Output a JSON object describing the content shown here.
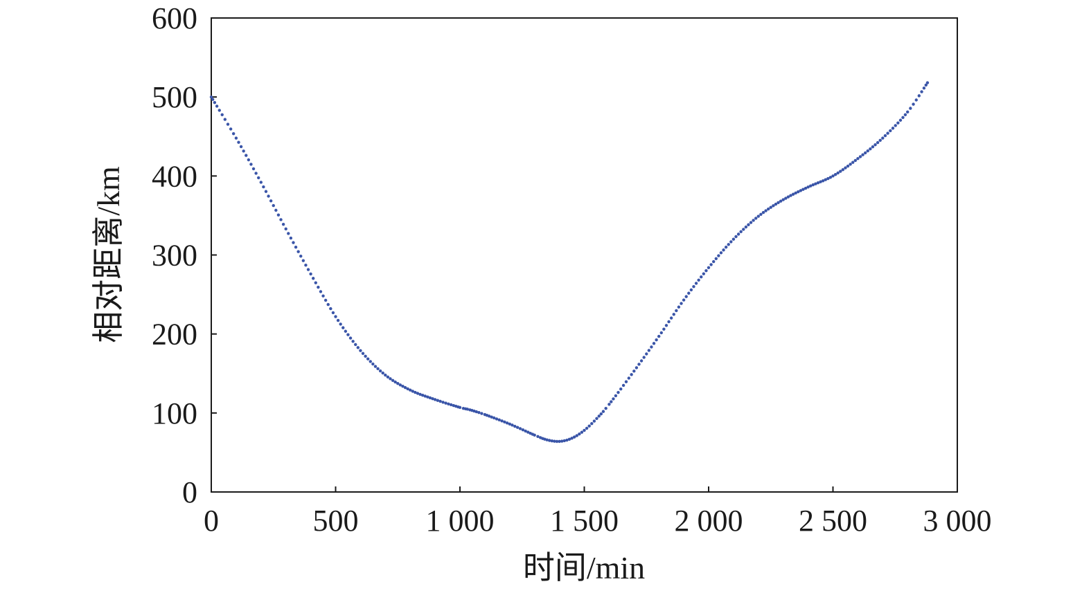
{
  "chart_data": {
    "type": "scatter",
    "xlabel": "时间/min",
    "ylabel": "相对距离/km",
    "xlim": [
      0,
      3000
    ],
    "ylim": [
      0,
      600
    ],
    "x_ticks": [
      0,
      500,
      1000,
      1500,
      2000,
      2500,
      3000
    ],
    "x_tick_labels": [
      "0",
      "500",
      "1 000",
      "1 500",
      "2 000",
      "2 500",
      "3 000"
    ],
    "y_ticks": [
      0,
      100,
      200,
      300,
      400,
      500,
      600
    ],
    "y_tick_labels": [
      "0",
      "100",
      "200",
      "300",
      "400",
      "500",
      "600"
    ],
    "grid": false,
    "legend": "none",
    "series": [
      {
        "color": "#3a55a8",
        "marker": "dot",
        "x": [
          0,
          100,
          200,
          300,
          400,
          500,
          600,
          700,
          800,
          900,
          1000,
          1040,
          1100,
          1200,
          1300,
          1350,
          1400,
          1450,
          1500,
          1550,
          1600,
          1700,
          1800,
          1900,
          2000,
          2100,
          2200,
          2300,
          2400,
          2500,
          2600,
          2700,
          2800,
          2880
        ],
        "y": [
          500,
          448,
          392,
          333,
          276,
          222,
          179,
          148,
          129,
          117,
          107,
          104,
          98,
          86,
          72,
          66,
          64,
          68,
          78,
          93,
          111,
          153,
          197,
          243,
          284,
          320,
          349,
          370,
          386,
          400,
          422,
          448,
          481,
          518
        ]
      }
    ]
  }
}
